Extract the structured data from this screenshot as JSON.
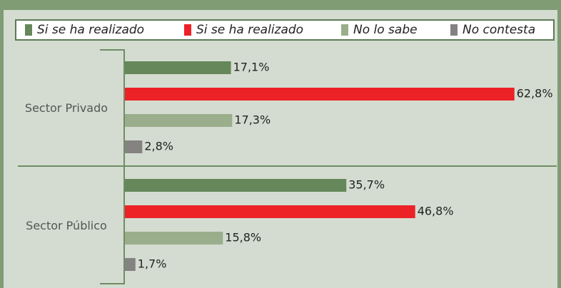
{
  "chart_data": {
    "type": "barh",
    "categories": [
      "Sector Privado",
      "Sector Público"
    ],
    "series": [
      {
        "name": "Si se ha realizado",
        "color": "#66875a",
        "values": [
          17.1,
          35.7
        ],
        "value_labels": [
          "17,1%",
          "35,7%"
        ]
      },
      {
        "name": "Si se ha realizado",
        "color": "#ec2226",
        "values": [
          62.8,
          46.8
        ],
        "value_labels": [
          "62,8%",
          "46,8%"
        ]
      },
      {
        "name": "No lo sabe",
        "color": "#9aae8c",
        "values": [
          17.3,
          15.8
        ],
        "value_labels": [
          "17,3%",
          "15,8%"
        ]
      },
      {
        "name": "No contesta",
        "color": "#858282",
        "values": [
          2.8,
          1.7
        ],
        "value_labels": [
          "2,8%",
          "1,7%"
        ]
      }
    ]
  }
}
